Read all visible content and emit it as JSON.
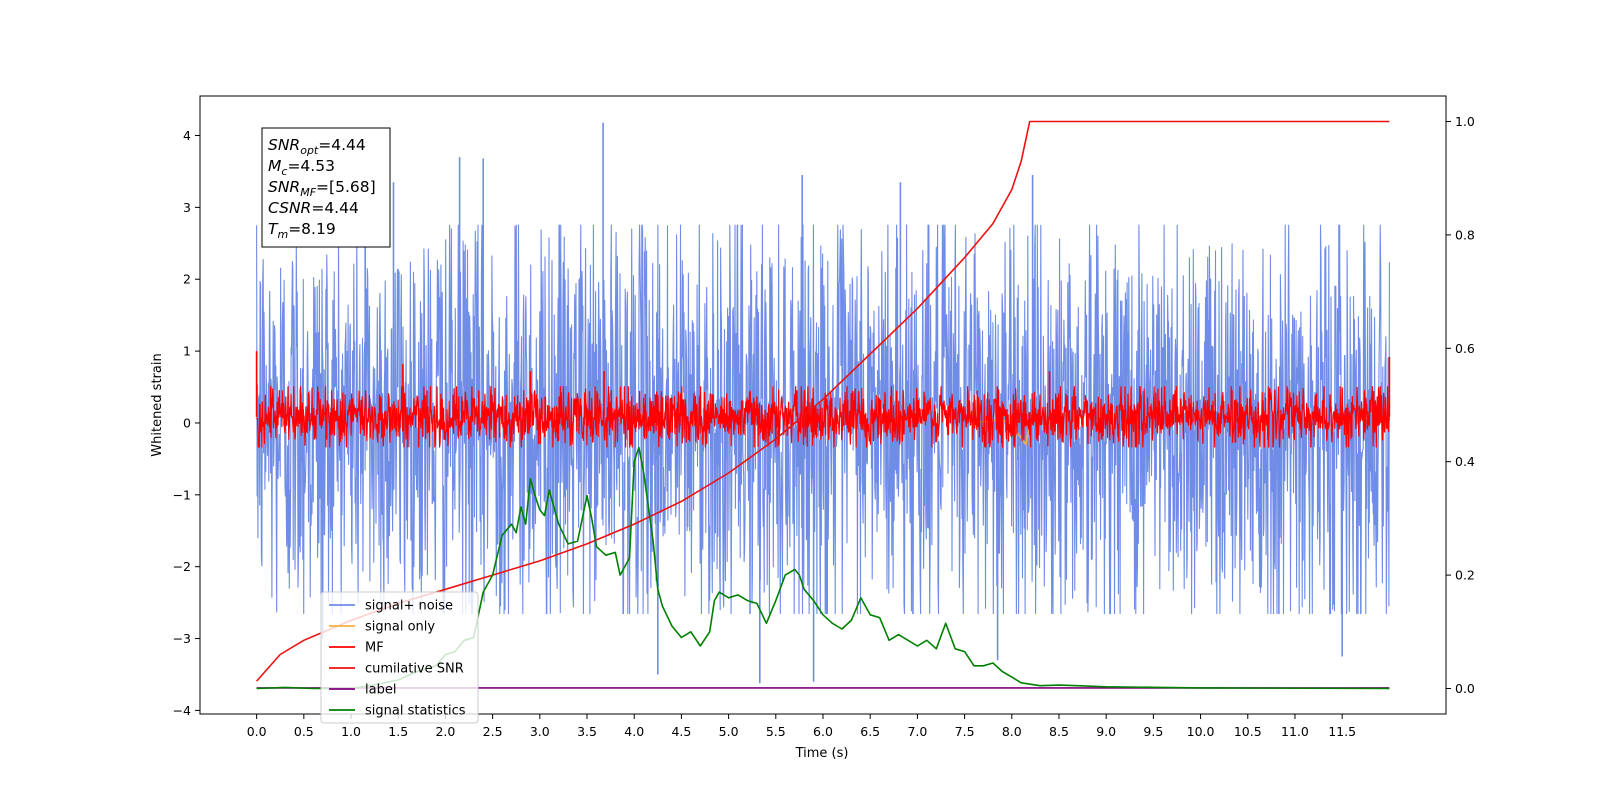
{
  "chart_data": {
    "type": "line",
    "xlabel": "Time (s)",
    "ylabel_left": "Whitened strain",
    "ylabel_right": "",
    "xlim": [
      -0.6,
      12.6
    ],
    "ylim_left": [
      -4.05,
      4.55
    ],
    "ylim_right": [
      -0.045,
      1.045
    ],
    "x_ticks": [
      "0.0",
      "0.5",
      "1.0",
      "1.5",
      "2.0",
      "2.5",
      "3.0",
      "3.5",
      "4.0",
      "4.5",
      "5.0",
      "5.5",
      "6.0",
      "6.5",
      "7.0",
      "7.5",
      "8.0",
      "8.5",
      "9.0",
      "9.5",
      "10.0",
      "10.5",
      "11.0",
      "11.5"
    ],
    "y_ticks_left": [
      "−4",
      "−3",
      "−2",
      "−1",
      "0",
      "1",
      "2",
      "3",
      "4"
    ],
    "y_ticks_right": [
      "0.0",
      "0.2",
      "0.4",
      "0.6",
      "0.8",
      "1.0"
    ],
    "grid": false,
    "legend_position": "lower-left",
    "series": [
      {
        "name": "signal+ noise",
        "axis": "left",
        "color": "#6f8ce6",
        "description": "noisy strain, roughly uniform envelope between about −2.3 and +2.5 with spikes",
        "x_range": [
          0.0,
          12.0
        ],
        "envelope": {
          "low": -2.3,
          "high": 2.4
        },
        "spikes": [
          {
            "x": 3.67,
            "y": 4.18
          },
          {
            "x": 2.15,
            "y": 3.7
          },
          {
            "x": 2.4,
            "y": 3.68
          },
          {
            "x": 1.45,
            "y": 3.35
          },
          {
            "x": 5.78,
            "y": 3.45
          },
          {
            "x": 8.22,
            "y": 3.45
          },
          {
            "x": 1.15,
            "y": 3.3
          },
          {
            "x": 6.82,
            "y": 3.35
          },
          {
            "x": 5.33,
            "y": -3.62
          },
          {
            "x": 5.9,
            "y": -3.6
          },
          {
            "x": 4.25,
            "y": -3.5
          },
          {
            "x": 7.85,
            "y": -3.3
          },
          {
            "x": 11.5,
            "y": -3.25
          },
          {
            "x": 0.7,
            "y": -3.0
          }
        ]
      },
      {
        "name": "signal only",
        "axis": "left",
        "color": "#f5b041",
        "description": "small chirp signal ending around t = 8.2 s",
        "points": [
          [
            7.6,
            0.0
          ],
          [
            7.9,
            0.05
          ],
          [
            8.05,
            -0.12
          ],
          [
            8.15,
            -0.3
          ],
          [
            8.19,
            0.0
          ]
        ]
      },
      {
        "name": "MF",
        "axis": "left",
        "color": "#ff0000",
        "description": "matched filter output, noisy band between about −0.3 and +0.5",
        "x_range": [
          0.0,
          12.0
        ],
        "envelope": {
          "low": -0.28,
          "high": 0.45
        },
        "spikes": [
          {
            "x": 0.0,
            "y": 1.0
          },
          {
            "x": 1.55,
            "y": 0.82
          },
          {
            "x": 12.0,
            "y": 0.92
          },
          {
            "x": 3.68,
            "y": 0.72
          },
          {
            "x": 8.4,
            "y": 0.72
          },
          {
            "x": 2.9,
            "y": 0.72
          }
        ]
      },
      {
        "name": "cumilative SNR",
        "axis": "right",
        "color": "#ee1111",
        "description": "cumulative SNR fraction, rises from 0.01 to 1.0 at t ≈ 8.19 s, flat afterwards",
        "points": [
          [
            0.0,
            0.013
          ],
          [
            0.25,
            0.06
          ],
          [
            0.5,
            0.085
          ],
          [
            1.0,
            0.12
          ],
          [
            1.5,
            0.15
          ],
          [
            2.0,
            0.175
          ],
          [
            2.5,
            0.2
          ],
          [
            3.0,
            0.225
          ],
          [
            3.5,
            0.255
          ],
          [
            4.0,
            0.29
          ],
          [
            4.5,
            0.33
          ],
          [
            5.0,
            0.38
          ],
          [
            5.5,
            0.44
          ],
          [
            6.0,
            0.51
          ],
          [
            6.5,
            0.59
          ],
          [
            7.0,
            0.67
          ],
          [
            7.5,
            0.76
          ],
          [
            7.8,
            0.82
          ],
          [
            8.0,
            0.88
          ],
          [
            8.1,
            0.93
          ],
          [
            8.19,
            1.0
          ],
          [
            12.0,
            1.0
          ]
        ]
      },
      {
        "name": "label",
        "axis": "right",
        "color": "#800080",
        "description": "label flat at zero",
        "points": [
          [
            0.0,
            0.001
          ],
          [
            12.0,
            0.001
          ]
        ]
      },
      {
        "name": "signal statistics",
        "axis": "right",
        "color": "#008000",
        "points": [
          [
            0.0,
            0.0
          ],
          [
            0.3,
            0.002
          ],
          [
            0.6,
            0.0
          ],
          [
            1.0,
            0.0
          ],
          [
            1.2,
            0.005
          ],
          [
            1.5,
            0.015
          ],
          [
            1.7,
            0.03
          ],
          [
            1.9,
            0.04
          ],
          [
            2.0,
            0.06
          ],
          [
            2.1,
            0.065
          ],
          [
            2.2,
            0.085
          ],
          [
            2.3,
            0.09
          ],
          [
            2.4,
            0.17
          ],
          [
            2.5,
            0.2
          ],
          [
            2.6,
            0.27
          ],
          [
            2.7,
            0.29
          ],
          [
            2.75,
            0.275
          ],
          [
            2.8,
            0.32
          ],
          [
            2.85,
            0.29
          ],
          [
            2.9,
            0.37
          ],
          [
            2.95,
            0.34
          ],
          [
            3.0,
            0.315
          ],
          [
            3.05,
            0.305
          ],
          [
            3.1,
            0.35
          ],
          [
            3.2,
            0.29
          ],
          [
            3.3,
            0.255
          ],
          [
            3.4,
            0.26
          ],
          [
            3.5,
            0.34
          ],
          [
            3.55,
            0.3
          ],
          [
            3.6,
            0.25
          ],
          [
            3.7,
            0.235
          ],
          [
            3.8,
            0.24
          ],
          [
            3.85,
            0.2
          ],
          [
            3.95,
            0.23
          ],
          [
            4.0,
            0.4
          ],
          [
            4.05,
            0.425
          ],
          [
            4.1,
            0.38
          ],
          [
            4.2,
            0.26
          ],
          [
            4.25,
            0.175
          ],
          [
            4.3,
            0.145
          ],
          [
            4.4,
            0.11
          ],
          [
            4.5,
            0.09
          ],
          [
            4.6,
            0.1
          ],
          [
            4.7,
            0.075
          ],
          [
            4.8,
            0.1
          ],
          [
            4.85,
            0.155
          ],
          [
            4.9,
            0.17
          ],
          [
            5.0,
            0.16
          ],
          [
            5.1,
            0.165
          ],
          [
            5.2,
            0.155
          ],
          [
            5.3,
            0.15
          ],
          [
            5.4,
            0.115
          ],
          [
            5.5,
            0.155
          ],
          [
            5.6,
            0.2
          ],
          [
            5.7,
            0.21
          ],
          [
            5.75,
            0.2
          ],
          [
            5.8,
            0.175
          ],
          [
            5.9,
            0.155
          ],
          [
            6.0,
            0.13
          ],
          [
            6.1,
            0.115
          ],
          [
            6.2,
            0.105
          ],
          [
            6.3,
            0.12
          ],
          [
            6.4,
            0.16
          ],
          [
            6.5,
            0.13
          ],
          [
            6.6,
            0.125
          ],
          [
            6.7,
            0.085
          ],
          [
            6.8,
            0.095
          ],
          [
            6.9,
            0.085
          ],
          [
            7.0,
            0.075
          ],
          [
            7.1,
            0.085
          ],
          [
            7.2,
            0.07
          ],
          [
            7.3,
            0.115
          ],
          [
            7.4,
            0.07
          ],
          [
            7.5,
            0.065
          ],
          [
            7.6,
            0.04
          ],
          [
            7.7,
            0.04
          ],
          [
            7.8,
            0.045
          ],
          [
            7.9,
            0.03
          ],
          [
            8.0,
            0.02
          ],
          [
            8.1,
            0.01
          ],
          [
            8.3,
            0.005
          ],
          [
            8.5,
            0.006
          ],
          [
            8.7,
            0.005
          ],
          [
            9.0,
            0.003
          ],
          [
            10.0,
            0.001
          ],
          [
            12.0,
            0.0
          ]
        ]
      }
    ],
    "annotation": {
      "lines": [
        {
          "name": "SNR",
          "sub": "opt",
          "value": "=4.44"
        },
        {
          "name": "M",
          "sub": "c",
          "value": "=4.53"
        },
        {
          "name": "SNR",
          "sub": "MF",
          "value": "=[5.68]"
        },
        {
          "name": "CSNR",
          "sub": "",
          "value": "=4.44"
        },
        {
          "name": "T",
          "sub": "m",
          "value": "=8.19"
        }
      ]
    }
  }
}
